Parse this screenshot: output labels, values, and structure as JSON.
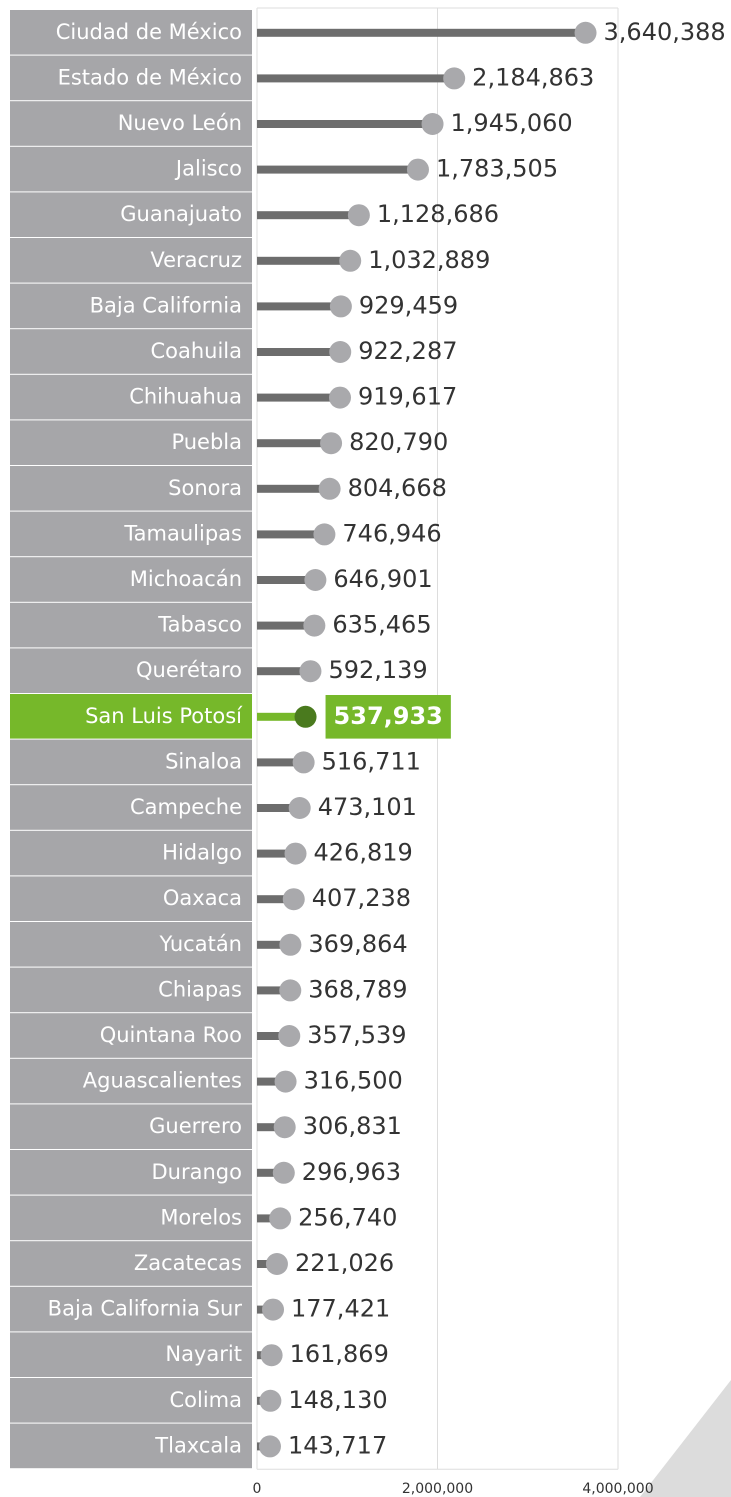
{
  "chart_data": {
    "type": "lollipop",
    "categories": [
      "Ciudad de México",
      "Estado de México",
      "Nuevo León",
      "Jalisco",
      "Guanajuato",
      "Veracruz",
      "Baja California",
      "Coahuila",
      "Chihuahua",
      "Puebla",
      "Sonora",
      "Tamaulipas",
      "Michoacán",
      "Tabasco",
      "Querétaro",
      "San Luis Potosí",
      "Sinaloa",
      "Campeche",
      "Hidalgo",
      "Oaxaca",
      "Yucatán",
      "Chiapas",
      "Quintana Roo",
      "Aguascalientes",
      "Guerrero",
      "Durango",
      "Morelos",
      "Zacatecas",
      "Baja California Sur",
      "Nayarit",
      "Colima",
      "Tlaxcala"
    ],
    "values": [
      3640388,
      2184863,
      1945060,
      1783505,
      1128686,
      1032889,
      929459,
      922287,
      919617,
      820790,
      804668,
      746946,
      646901,
      635465,
      592139,
      537933,
      516711,
      473101,
      426819,
      407238,
      369864,
      368789,
      357539,
      316500,
      306831,
      296963,
      256740,
      221026,
      177421,
      161869,
      148130,
      143717
    ],
    "value_labels": [
      "3,640,388",
      "2,184,863",
      "1,945,060",
      "1,783,505",
      "1,128,686",
      "1,032,889",
      "929,459",
      "922,287",
      "919,617",
      "820,790",
      "804,668",
      "746,946",
      "646,901",
      "635,465",
      "592,139",
      "537,933",
      "516,711",
      "473,101",
      "426,819",
      "407,238",
      "369,864",
      "368,789",
      "357,539",
      "316,500",
      "306,831",
      "296,963",
      "256,740",
      "221,026",
      "177,421",
      "161,869",
      "148,130",
      "143,717"
    ],
    "color": "#6d6d6d",
    "marker_color": "#a9a9ac",
    "highlight": 15,
    "highlight_color": "#76b82a",
    "highlight_marker_color": "#4a7a1e",
    "xlim": [
      0,
      4000000
    ],
    "xticks": [
      0,
      {
        "value": 2000000,
        "label": "2,000,000"
      },
      {
        "value": 4000000,
        "label": "4,000,000"
      }
    ],
    "grid": true
  }
}
